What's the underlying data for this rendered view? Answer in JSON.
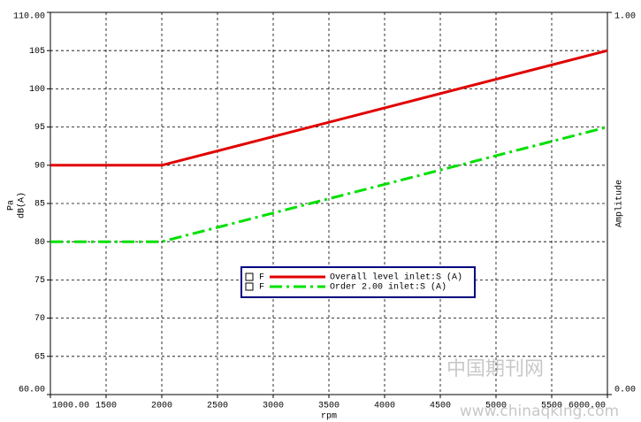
{
  "chart_data": {
    "type": "line",
    "xlabel": "rpm",
    "ylabel": "Pa",
    "ylabel_unit": "dB(A)",
    "y2label": "Amplitude",
    "x": [
      1000,
      2000,
      6000
    ],
    "series": [
      {
        "name": "Overall level inlet:S (A)",
        "legend_flag": "F",
        "color": "#e00000",
        "dash": "solid",
        "values": [
          90,
          90,
          105
        ]
      },
      {
        "name": "Order 2.00 inlet:S (A)",
        "legend_flag": "F",
        "color": "#00e000",
        "dash": "dashdot",
        "values": [
          80,
          80,
          95
        ]
      }
    ],
    "xlim": [
      1000,
      6000
    ],
    "xticks": [
      {
        "value": 1000,
        "label": "1000.00"
      },
      1500,
      2000,
      2500,
      3000,
      3500,
      4000,
      4500,
      5000,
      5500,
      {
        "value": 6000,
        "label": "6000.00"
      }
    ],
    "ylim": [
      60,
      110
    ],
    "yticks": [
      {
        "value": 60,
        "label": "60.00"
      },
      65,
      70,
      75,
      80,
      85,
      90,
      95,
      100,
      105,
      {
        "value": 110,
        "label": "110.00"
      }
    ],
    "y2lim": [
      0,
      1
    ],
    "y2ticks": [
      {
        "value": 0,
        "label": "0.00"
      },
      {
        "value": 1,
        "label": "1.00"
      }
    ],
    "grid": true,
    "watermark": [
      "中国期刊网",
      "www.chinaqking.com"
    ]
  }
}
